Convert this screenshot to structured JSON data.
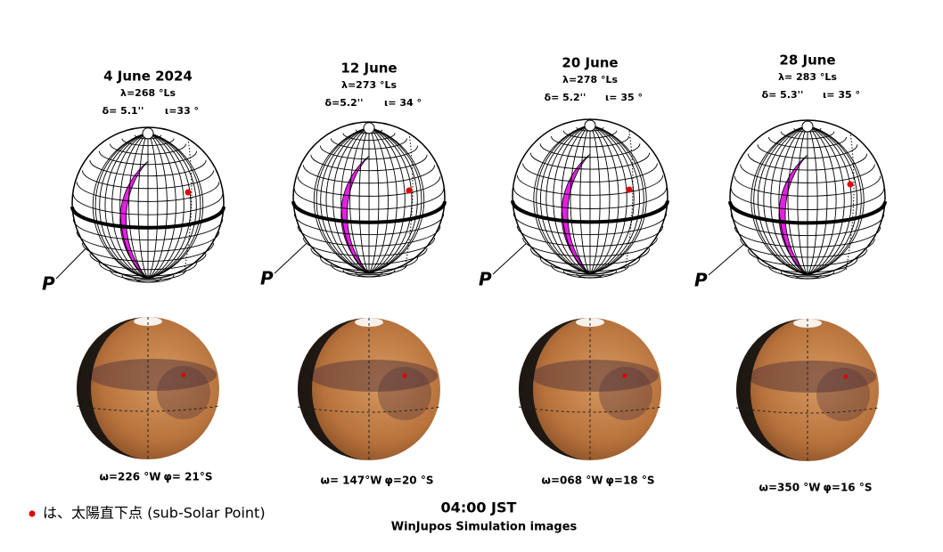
{
  "panels": [
    {
      "date": "4 June 2024",
      "ls": "λ=268 °Ls",
      "delta": "δ= 5.1''",
      "iota": "ι=33 °",
      "omega": "ω=226 °W",
      "phi": "φ= 21°S",
      "pole": "P"
    },
    {
      "date": "12 June",
      "ls": "λ=273 °Ls",
      "delta": "δ=5.2''",
      "iota": "ι= 34 °",
      "omega": "ω= 147°W",
      "phi": "φ=20 °S",
      "pole": "P"
    },
    {
      "date": "20 June",
      "ls": "λ=278 °Ls",
      "delta": "δ= 5.2''",
      "iota": "ι= 35 °",
      "omega": "ω=068 °W",
      "phi": "φ=18 °S",
      "pole": "P"
    },
    {
      "date": "28 June",
      "ls": "λ= 283 °Ls",
      "delta": "δ= 5.3''",
      "iota": "ι= 35 °",
      "omega": "ω=350 °W",
      "phi": "φ=16 °S",
      "pole": "P"
    }
  ],
  "legend": "は、太陽直下点 (sub-Solar Point)",
  "time": "04:00 JST",
  "caption": "WinJupos Simulation images"
}
